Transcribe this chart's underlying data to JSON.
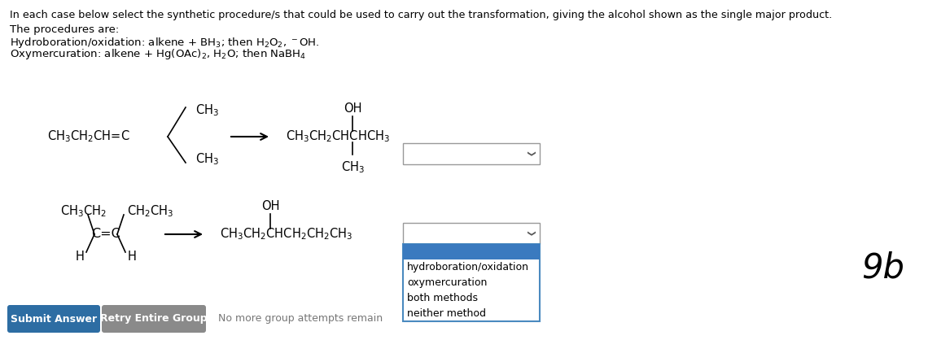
{
  "title_text": "In each case below select the synthetic procedure/s that could be used to carry out the transformation, giving the alcohol shown as the single major product.",
  "procedures_header": "The procedures are:",
  "procedure1": "Hydroboration/oxidation: alkene + BH$_3$; then H$_2$O$_2$, $^-$OH.",
  "procedure2": "Oxymercuration: alkene + Hg(OAc)$_2$, H$_2$O; then NaBH$_4$",
  "submit_btn": "Submit Answer",
  "retry_btn": "Retry Entire Group",
  "no_more": "No more group attempts remain",
  "handwritten": "9b",
  "bg_color": "#ffffff",
  "text_color": "#000000",
  "btn_submit_color": "#2d6da3",
  "btn_retry_color": "#8a8a8a",
  "dropdown_border": "#aaaaaa",
  "dropdown_selected_color": "#3a7abf",
  "font_size_title": 9.2,
  "font_size_body": 9.5,
  "font_size_chem": 10.5,
  "font_size_dropdown": 9.0,
  "dropdown_options": [
    "hydroboration/oxidation",
    "oxymercuration",
    "both methods",
    "neither method"
  ]
}
